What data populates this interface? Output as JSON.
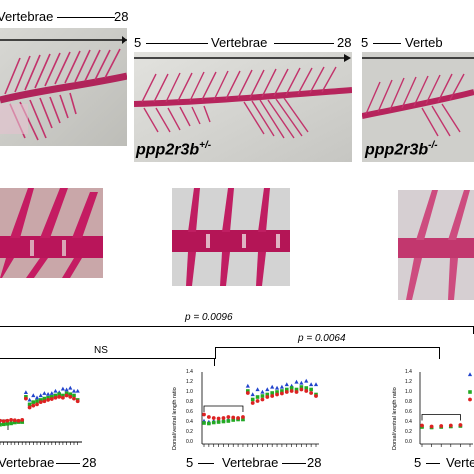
{
  "panel_a": {
    "left": {
      "axis_label": "Vertebrae",
      "end": "28"
    },
    "middle": {
      "start": "5",
      "axis_label": "Vertebrae",
      "end": "28",
      "genotype": "ppp2r3b",
      "superscript": "+/-"
    },
    "right": {
      "start": "5",
      "axis_label": "Verteb",
      "genotype": "ppp2r3b",
      "superscript": "-/-"
    }
  },
  "panel_c": {
    "brackets": {
      "top": {
        "label": "p = 0.0096"
      },
      "ns": {
        "label": "NS"
      },
      "mid": {
        "label": "p = 0.0064"
      }
    },
    "plot_left": {
      "axis_label": "Vertebrae",
      "end": "28"
    },
    "plot_mid": {
      "ylabel": "Dorsal/ventral length ratio",
      "yticks": [
        "0.0",
        "0.2",
        "0.4",
        "0.6",
        "0.8",
        "1.0",
        "1.2",
        "1.4"
      ],
      "start": "5",
      "axis_label": "Vertebrae",
      "end": "28"
    },
    "plot_right": {
      "ylabel": "Dorsal/ventral length ratio",
      "yticks": [
        "0.0",
        "0.2",
        "0.4",
        "0.6",
        "0.8",
        "1.0",
        "1.2",
        "1.4"
      ],
      "start": "5",
      "axis_label": "Verte"
    }
  },
  "chart_data": [
    {
      "type": "scatter",
      "title": "",
      "ylabel": "Dorsal/ventral length ratio",
      "xlabel": "Vertebrae",
      "ylim": [
        0,
        1.4
      ],
      "x_range": [
        5,
        28
      ],
      "series": [
        {
          "color": "#2244cc",
          "x": [
            5,
            6,
            7,
            8,
            9,
            10,
            11,
            12,
            13,
            14,
            15,
            16,
            17,
            18,
            19,
            20,
            21,
            22,
            23,
            24,
            25,
            26,
            27,
            28
          ],
          "values": [
            0.42,
            0.4,
            0.42,
            0.43,
            0.44,
            0.45,
            0.47,
            0.47,
            0.46,
            1.12,
            0.95,
            1.05,
            1.0,
            1.05,
            1.1,
            1.08,
            1.1,
            1.15,
            1.12,
            1.2,
            1.18,
            1.22,
            1.15,
            1.15
          ]
        },
        {
          "color": "#22aa22",
          "x": [
            5,
            6,
            7,
            8,
            9,
            10,
            11,
            12,
            13,
            14,
            15,
            16,
            17,
            18,
            19,
            20,
            21,
            22,
            23,
            24,
            25,
            26,
            27,
            28
          ],
          "values": [
            0.38,
            0.37,
            0.39,
            0.4,
            0.41,
            0.42,
            0.44,
            0.45,
            0.45,
            1.02,
            0.85,
            0.9,
            0.92,
            0.95,
            0.98,
            1.0,
            1.02,
            1.05,
            1.08,
            1.05,
            1.1,
            1.08,
            1.05,
            0.95
          ]
        },
        {
          "color": "#dd2222",
          "x": [
            5,
            6,
            7,
            8,
            9,
            10,
            11,
            12,
            13,
            14,
            15,
            16,
            17,
            18,
            19,
            20,
            21,
            22,
            23,
            24,
            25,
            26,
            27,
            28
          ],
          "values": [
            0.55,
            0.5,
            0.48,
            0.47,
            0.48,
            0.5,
            0.49,
            0.48,
            0.5,
            0.98,
            0.78,
            0.82,
            0.85,
            0.9,
            0.92,
            0.95,
            0.97,
            1.0,
            1.02,
            1.0,
            1.05,
            1.02,
            0.98,
            0.92
          ]
        }
      ]
    },
    {
      "type": "scatter",
      "title": "",
      "ylabel": "Dorsal/ventral length ratio",
      "xlabel": "Vertebrae",
      "ylim": [
        0,
        1.4
      ],
      "x_range": [
        5,
        10
      ],
      "series": [
        {
          "color": "#2244cc",
          "x": [
            5,
            6,
            7,
            8,
            9,
            10
          ],
          "values": [
            0.32,
            0.3,
            0.31,
            0.32,
            0.33,
            1.35
          ]
        },
        {
          "color": "#22aa22",
          "x": [
            5,
            6,
            7,
            8,
            9,
            10
          ],
          "values": [
            0.3,
            0.29,
            0.3,
            0.31,
            0.32,
            1.0
          ]
        },
        {
          "color": "#dd2222",
          "x": [
            5,
            6,
            7,
            8,
            9,
            10
          ],
          "values": [
            0.33,
            0.31,
            0.32,
            0.33,
            0.34,
            0.85
          ]
        }
      ]
    }
  ]
}
